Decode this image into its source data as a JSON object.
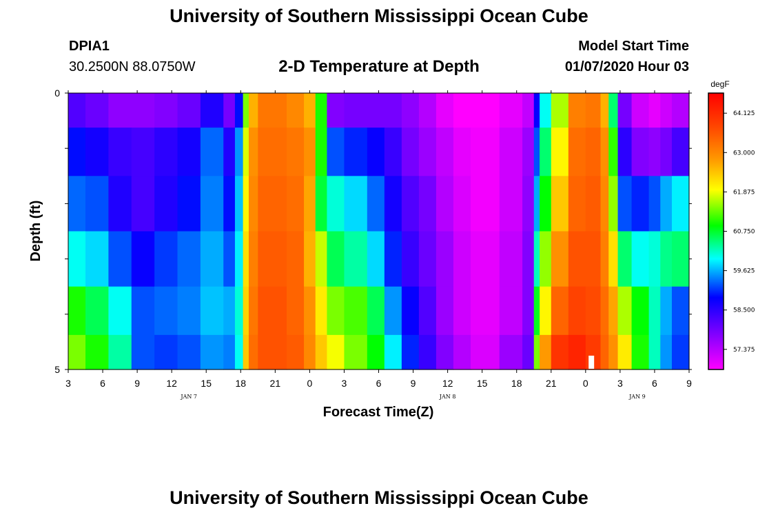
{
  "header": {
    "title": "University of Southern Mississippi Ocean Cube",
    "station_name": "DPIA1",
    "station_coords": "30.2500N 88.0750W",
    "plot_title": "2-D Temperature at Depth",
    "model_start_label": "Model Start Time",
    "model_start_value": "01/07/2020 Hour 03"
  },
  "footer": {
    "title": "University of Southern Mississippi Ocean Cube"
  },
  "chart_data": {
    "type": "heatmap",
    "title": "2-D Temperature at Depth",
    "xlabel": "Forecast Time(Z)",
    "ylabel": "Depth (ft)",
    "x_start_hour": 3,
    "x_end_hour": 57,
    "x_tick_labels": [
      "3",
      "6",
      "9",
      "12",
      "15",
      "18",
      "21",
      "0",
      "3",
      "6",
      "9",
      "12",
      "15",
      "18",
      "21",
      "0",
      "3",
      "6",
      "9"
    ],
    "date_labels": [
      {
        "label": "JAN 7",
        "hour": 13.5
      },
      {
        "label": "JAN 8",
        "hour": 36
      },
      {
        "label": "JAN 9",
        "hour": 52.5
      }
    ],
    "y_tick_labels": [
      "0",
      "5"
    ],
    "ylim": [
      0,
      5
    ],
    "depth_rows": [
      0.25,
      1,
      2,
      3,
      4,
      4.75
    ],
    "hour_bins": [
      3,
      4.5,
      6.5,
      8.5,
      10.5,
      12.5,
      14.5,
      16.5,
      17.5,
      18.2,
      18.7,
      19.5,
      22,
      23.5,
      24.5,
      25.5,
      27,
      29,
      30.5,
      32,
      33.5,
      35,
      36.5,
      38,
      39,
      40.5,
      42.5,
      43.5,
      44,
      45,
      46.5,
      48,
      49.3,
      50,
      50.8,
      52,
      53.5,
      54.5,
      55.5,
      57
    ],
    "temperature_grid": [
      [
        58.2,
        58.0,
        57.7,
        57.7,
        57.8,
        58.0,
        58.6,
        57.9,
        58.9,
        61.4,
        62.6,
        63.2,
        63.0,
        62.6,
        61.0,
        57.8,
        57.9,
        57.9,
        57.9,
        57.7,
        57.4,
        57.0,
        56.7,
        56.6,
        56.6,
        57.0,
        57.3,
        58.8,
        60.0,
        61.6,
        63.1,
        63.2,
        62.6,
        60.5,
        57.9,
        57.2,
        57.0,
        57.2,
        57.4
      ],
      [
        58.9,
        58.7,
        58.4,
        58.3,
        58.5,
        58.7,
        59.3,
        58.6,
        59.5,
        61.8,
        62.9,
        63.3,
        63.2,
        62.9,
        61.0,
        59.2,
        59.0,
        58.8,
        58.4,
        57.9,
        57.6,
        57.3,
        57.0,
        56.9,
        56.9,
        57.2,
        57.6,
        59.2,
        60.5,
        62.0,
        63.3,
        63.4,
        62.9,
        61.1,
        58.5,
        57.8,
        57.7,
        57.9,
        58.3
      ],
      [
        59.3,
        59.2,
        58.6,
        58.3,
        58.6,
        58.9,
        59.4,
        58.9,
        59.7,
        62.0,
        63.0,
        63.4,
        63.3,
        62.7,
        60.7,
        60.1,
        59.8,
        59.3,
        58.7,
        58.2,
        57.9,
        57.4,
        57.1,
        56.9,
        56.9,
        57.2,
        57.7,
        59.6,
        60.9,
        62.4,
        63.4,
        63.5,
        63.0,
        61.5,
        59.2,
        59.0,
        59.2,
        59.6,
        59.9
      ],
      [
        60.0,
        59.8,
        59.2,
        58.8,
        59.1,
        59.3,
        59.6,
        59.2,
        59.9,
        62.2,
        63.1,
        63.5,
        63.4,
        62.6,
        61.7,
        60.6,
        60.3,
        59.8,
        59.0,
        58.4,
        58.0,
        57.6,
        57.2,
        57.0,
        57.0,
        57.3,
        57.8,
        60.2,
        61.5,
        62.9,
        63.6,
        63.6,
        63.1,
        62.2,
        60.5,
        60.0,
        60.1,
        60.4,
        60.5
      ],
      [
        61.0,
        60.6,
        60.0,
        59.2,
        59.3,
        59.4,
        59.7,
        59.6,
        60.1,
        62.3,
        63.2,
        63.6,
        63.4,
        62.9,
        62.1,
        61.4,
        61.2,
        60.6,
        59.5,
        58.8,
        58.2,
        57.6,
        57.2,
        57.0,
        57.0,
        57.3,
        57.8,
        60.8,
        62.0,
        63.4,
        63.8,
        63.7,
        63.3,
        62.7,
        61.6,
        60.9,
        60.2,
        59.6,
        59.2
      ],
      [
        61.4,
        61.0,
        60.3,
        59.2,
        59.1,
        59.2,
        59.5,
        59.4,
        60.0,
        62.4,
        63.3,
        63.6,
        63.5,
        63.0,
        62.4,
        61.9,
        61.4,
        60.9,
        59.9,
        59.0,
        58.4,
        57.8,
        57.4,
        57.1,
        57.1,
        57.6,
        58.0,
        61.4,
        62.8,
        64.0,
        64.2,
        63.9,
        63.4,
        62.9,
        62.1,
        61.0,
        60.2,
        59.5,
        59.1
      ]
    ],
    "missing_data_marks": [
      {
        "hour": 48.5,
        "depth_from": 4.75,
        "depth_to": 5
      }
    ],
    "colorbar": {
      "unit": "degF",
      "min": 56.8,
      "max": 64.7,
      "tick_values": [
        57.375,
        58.5,
        59.625,
        60.75,
        61.875,
        63.0,
        64.125
      ],
      "tick_labels": [
        "57.375",
        "58.500",
        "59.625",
        "60.750",
        "61.875",
        "63.000",
        "64.125"
      ]
    }
  }
}
